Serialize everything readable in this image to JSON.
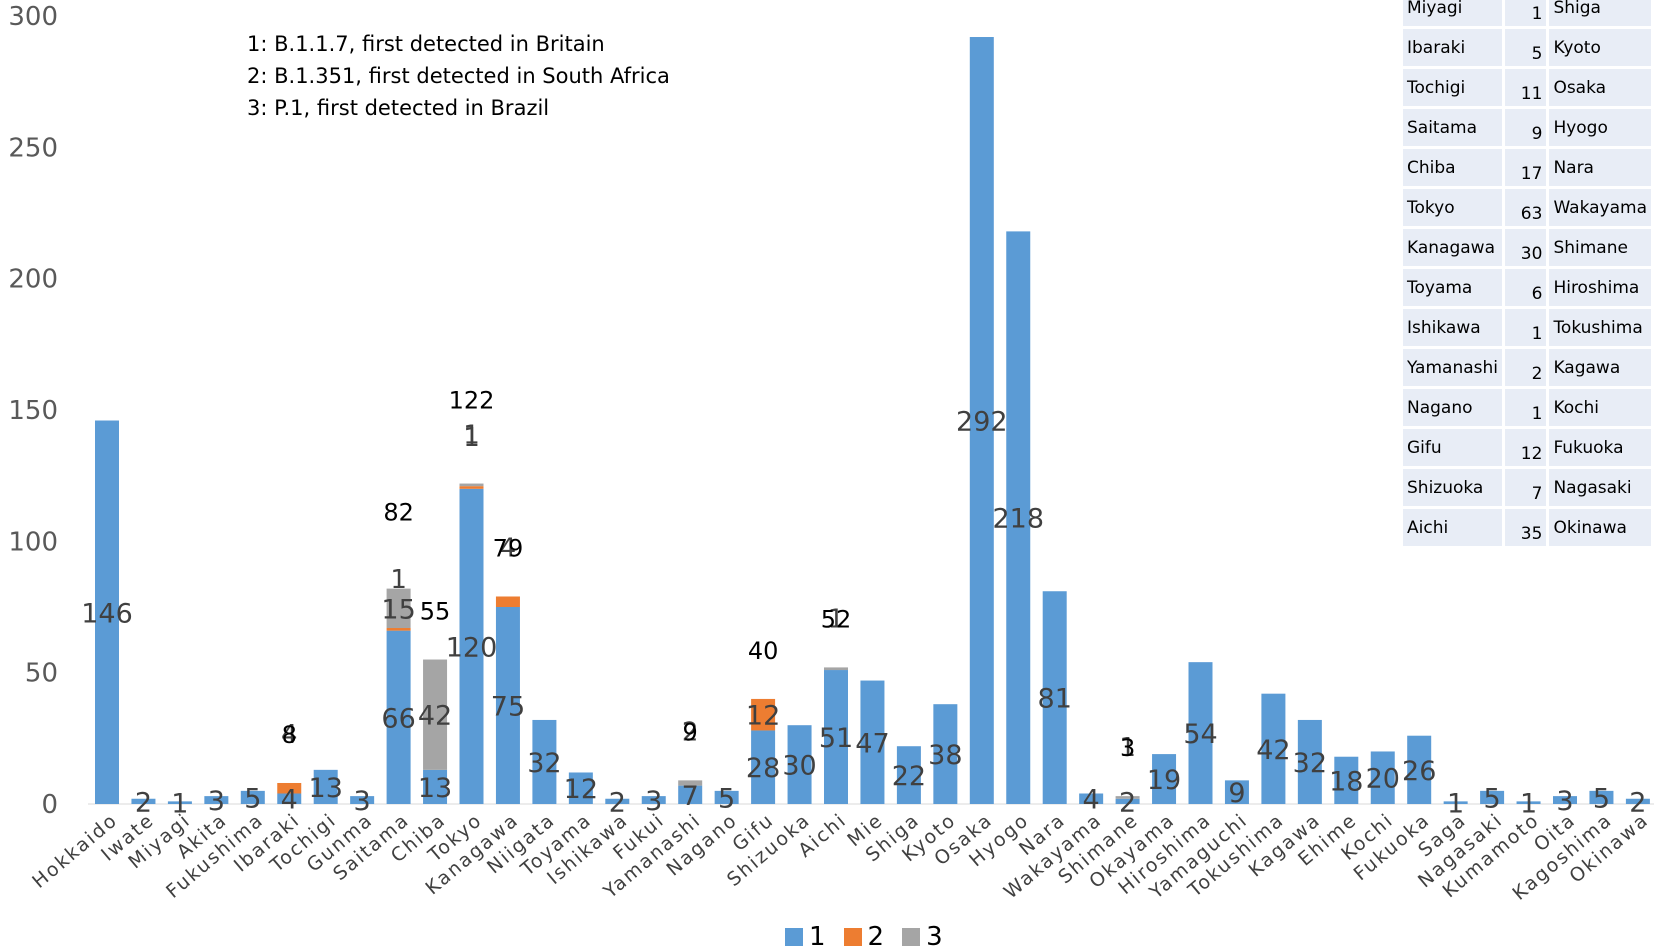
{
  "notes": [
    "1: B.1.1.7, first detected in Britain",
    "2: B.1.351, first detected in South Africa",
    "3: P.1, first detected in Brazil"
  ],
  "colors": {
    "s1": "#5b9bd5",
    "s2": "#ed7d31",
    "s3": "#a5a5a5"
  },
  "legend": [
    "1",
    "2",
    "3"
  ],
  "side_table": {
    "rows": [
      {
        "pref": "Miyagi",
        "value": "1",
        "right": "Shiga"
      },
      {
        "pref": "Ibaraki",
        "value": "5",
        "right": "Kyoto"
      },
      {
        "pref": "Tochigi",
        "value": "11",
        "right": "Osaka"
      },
      {
        "pref": "Saitama",
        "value": "9",
        "right": "Hyogo"
      },
      {
        "pref": "Chiba",
        "value": "17",
        "right": "Nara"
      },
      {
        "pref": "Tokyo",
        "value": "63",
        "right": "Wakayama"
      },
      {
        "pref": "Kanagawa",
        "value": "30",
        "right": "Shimane"
      },
      {
        "pref": "Toyama",
        "value": "6",
        "right": "Hiroshima"
      },
      {
        "pref": "Ishikawa",
        "value": "1",
        "right": "Tokushima"
      },
      {
        "pref": "Yamanashi",
        "value": "2",
        "right": "Kagawa"
      },
      {
        "pref": "Nagano",
        "value": "1",
        "right": "Kochi"
      },
      {
        "pref": "Gifu",
        "value": "12",
        "right": "Fukuoka"
      },
      {
        "pref": "Shizuoka",
        "value": "7",
        "right": "Nagasaki"
      },
      {
        "pref": "Aichi",
        "value": "35",
        "right": "Okinawa"
      }
    ]
  },
  "chart_data": {
    "type": "bar",
    "stacked": true,
    "ylim": [
      0,
      300
    ],
    "yticks": [
      0,
      50,
      100,
      150,
      200,
      250,
      300
    ],
    "categories": [
      "Hokkaido",
      "Iwate",
      "Miyagi",
      "Akita",
      "Fukushima",
      "Ibaraki",
      "Tochigi",
      "Gunma",
      "Saitama",
      "Chiba",
      "Tokyo",
      "Kanagawa",
      "Niigata",
      "Toyama",
      "Ishikawa",
      "Fukui",
      "Yamanashi",
      "Nagano",
      "Gifu",
      "Shizuoka",
      "Aichi",
      "Mie",
      "Shiga",
      "Kyoto",
      "Osaka",
      "Hyogo",
      "Nara",
      "Wakayama",
      "Shimane",
      "Okayama",
      "Hiroshima",
      "Yamaguchi",
      "Tokushima",
      "Kagawa",
      "Ehime",
      "Kochi",
      "Fukuoka",
      "Saga",
      "Nagasaki",
      "Kumamoto",
      "Oita",
      "Kagoshima",
      "Okinawa"
    ],
    "series": [
      {
        "name": "1",
        "values": [
          146,
          2,
          1,
          3,
          5,
          4,
          13,
          3,
          66,
          13,
          120,
          75,
          32,
          12,
          2,
          3,
          7,
          5,
          28,
          30,
          51,
          47,
          22,
          38,
          292,
          218,
          81,
          4,
          2,
          19,
          54,
          9,
          42,
          32,
          18,
          20,
          26,
          1,
          5,
          1,
          3,
          5,
          2
        ]
      },
      {
        "name": "2",
        "values": [
          0,
          0,
          0,
          0,
          0,
          4,
          0,
          0,
          1,
          0,
          1,
          4,
          0,
          0,
          0,
          0,
          0,
          0,
          12,
          0,
          0,
          0,
          0,
          0,
          0,
          0,
          0,
          0,
          0,
          0,
          0,
          0,
          0,
          0,
          0,
          0,
          0,
          0,
          0,
          0,
          0,
          0,
          0
        ]
      },
      {
        "name": "3",
        "values": [
          0,
          0,
          0,
          0,
          0,
          0,
          0,
          0,
          15,
          42,
          1,
          0,
          0,
          0,
          0,
          0,
          2,
          0,
          0,
          0,
          1,
          0,
          0,
          0,
          0,
          0,
          0,
          0,
          1,
          0,
          0,
          0,
          0,
          0,
          0,
          0,
          0,
          0,
          0,
          0,
          0,
          0,
          0
        ]
      }
    ],
    "totals": [
      {
        "category": "Ibaraki",
        "total": 8
      },
      {
        "category": "Saitama",
        "total": 82
      },
      {
        "category": "Chiba",
        "total": 55
      },
      {
        "category": "Tokyo",
        "total": 122
      },
      {
        "category": "Kanagawa",
        "total": 79
      },
      {
        "category": "Yamanashi",
        "total": 9
      },
      {
        "category": "Gifu",
        "total": 40
      },
      {
        "category": "Aichi",
        "total": 52
      },
      {
        "category": "Shimane",
        "total": 3
      }
    ],
    "legend_position": "bottom"
  }
}
